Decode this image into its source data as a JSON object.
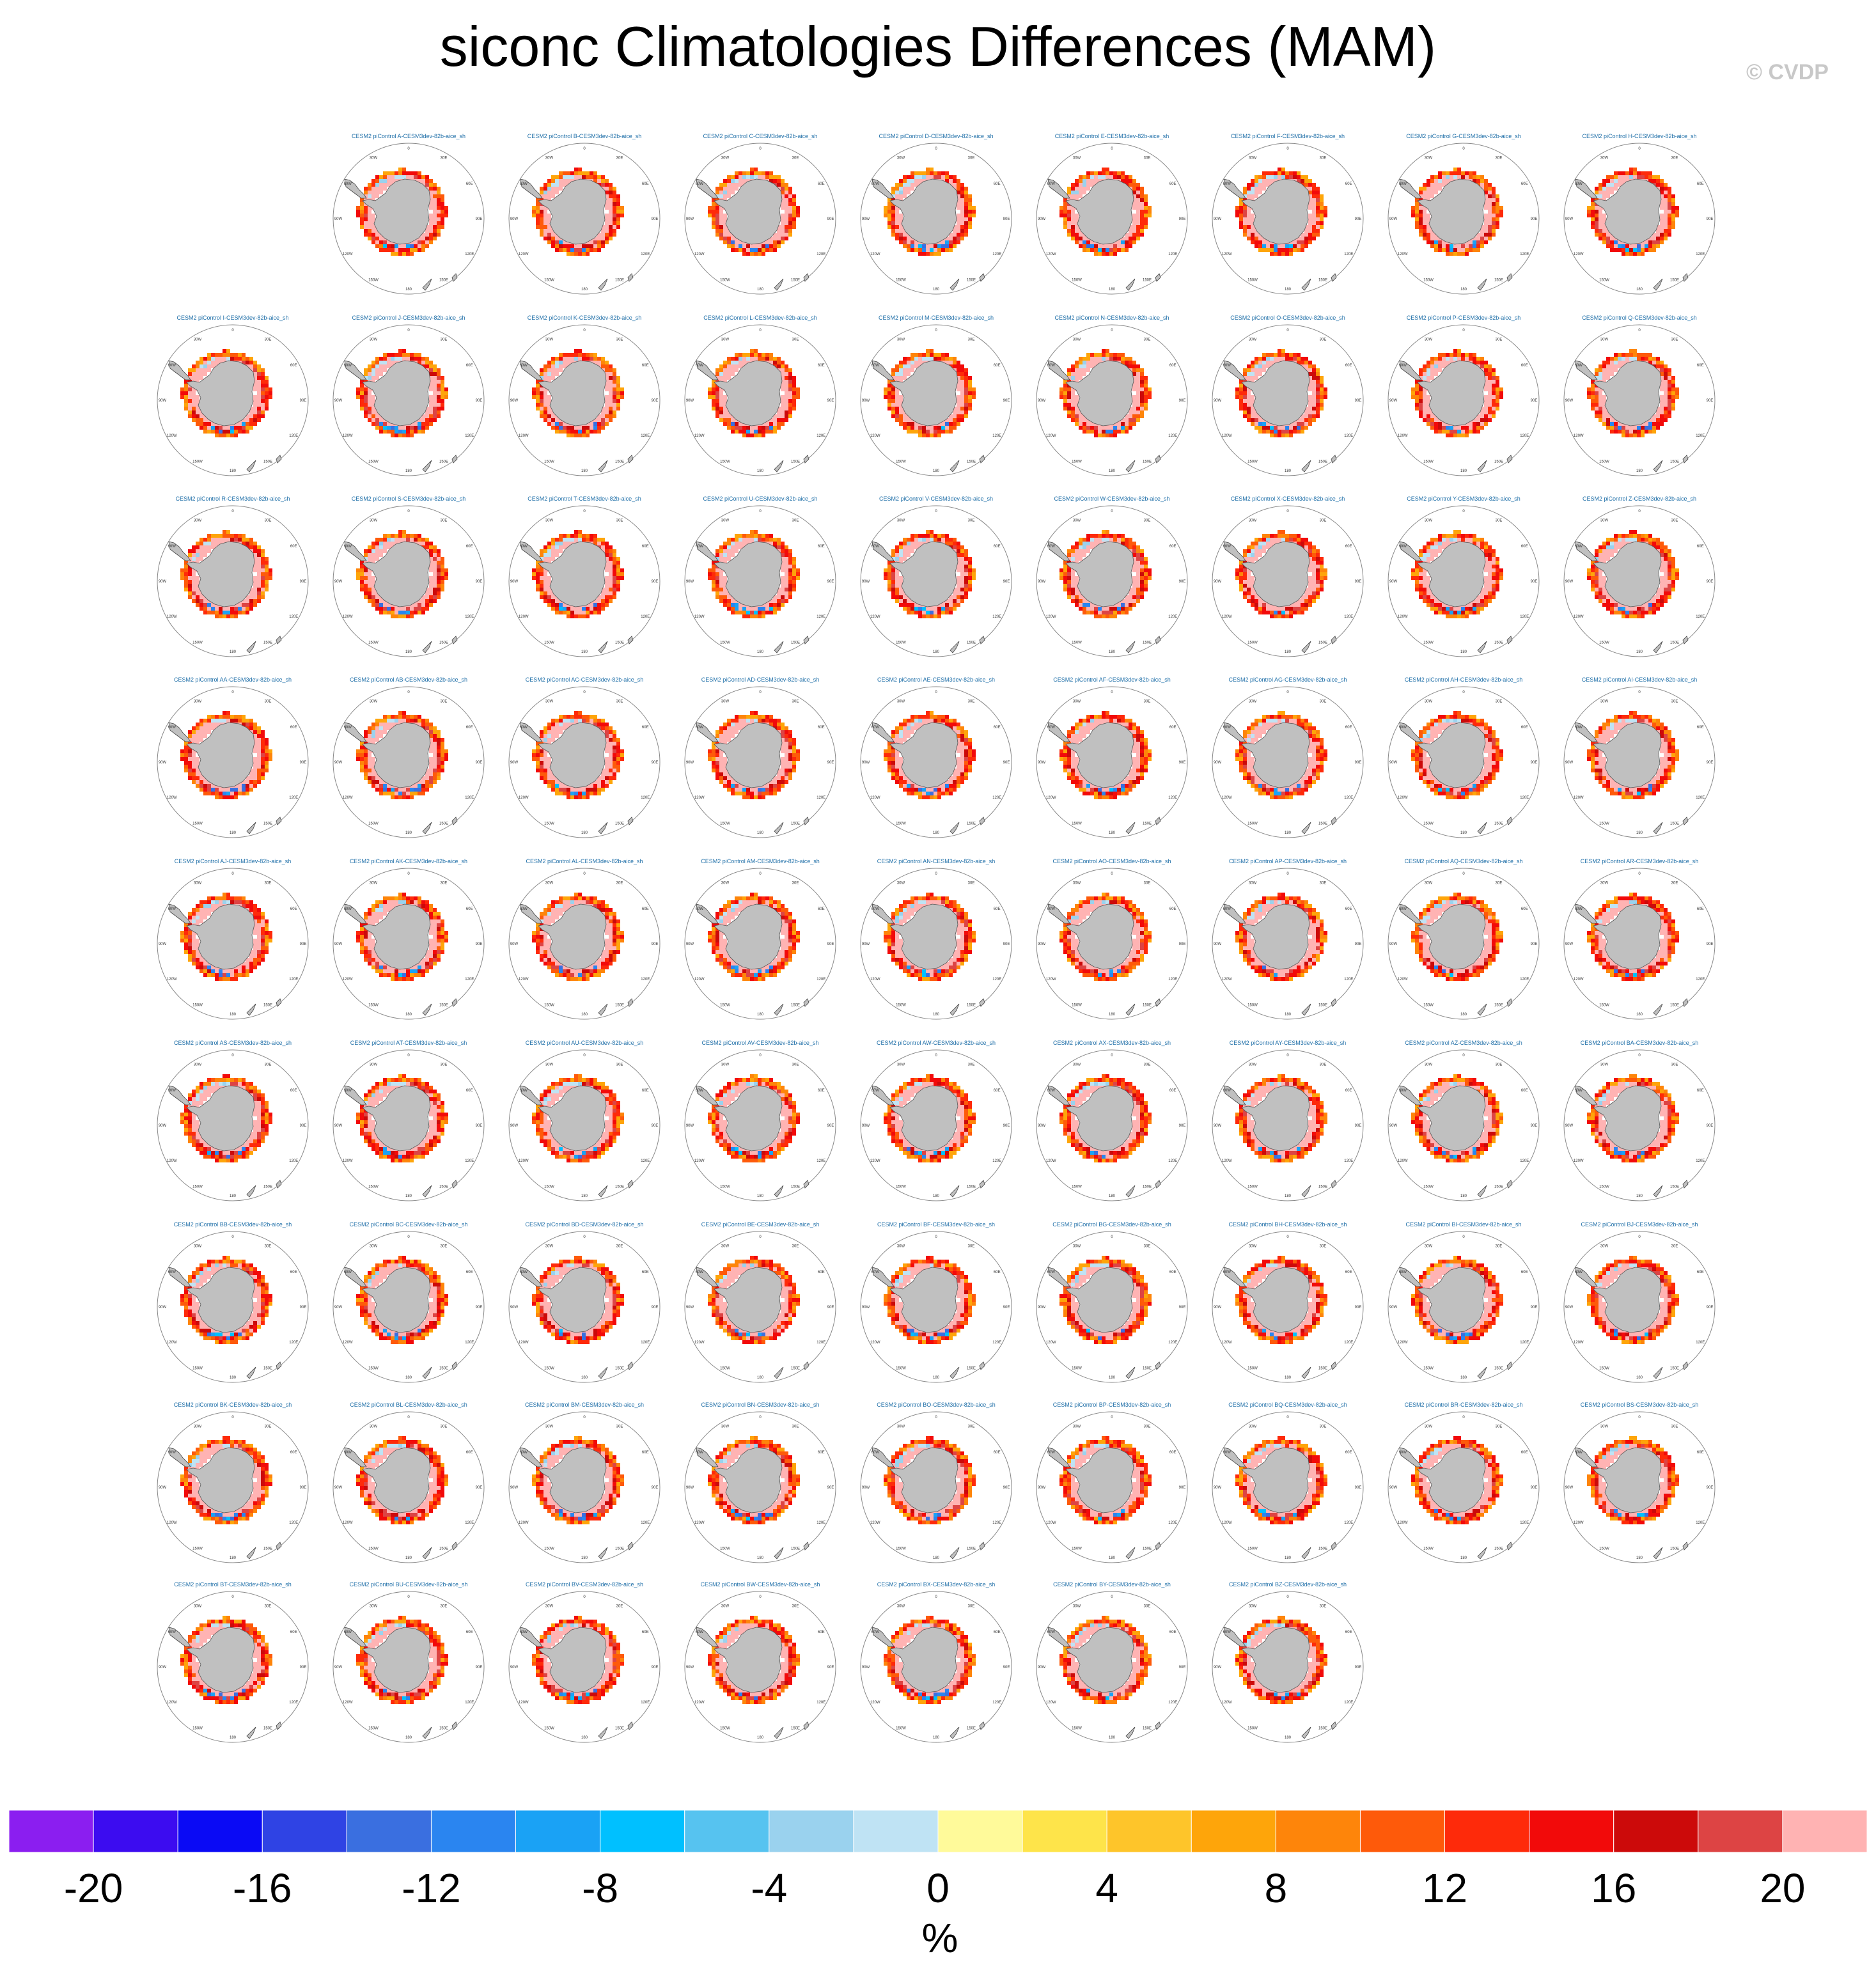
{
  "title": "siconc Climatologies Differences (MAM)",
  "watermark": "© CVDP",
  "chart_data": {
    "type": "heatmap",
    "title": "siconc Climatologies Differences (MAM)",
    "projection": "south polar stereographic",
    "variable": "siconc",
    "season": "MAM",
    "units": "%",
    "meridian_labels": [
      "0",
      "30E",
      "60E",
      "90E",
      "120E",
      "150E",
      "180",
      "150W",
      "120W",
      "90W",
      "60W",
      "30W"
    ],
    "panel_titles": [
      "CESM2 piControl A-CESM3dev-82b-aice_sh",
      "CESM2 piControl B-CESM3dev-82b-aice_sh",
      "CESM2 piControl C-CESM3dev-82b-aice_sh",
      "CESM2 piControl D-CESM3dev-82b-aice_sh",
      "CESM2 piControl E-CESM3dev-82b-aice_sh",
      "CESM2 piControl F-CESM3dev-82b-aice_sh",
      "CESM2 piControl G-CESM3dev-82b-aice_sh",
      "CESM2 piControl H-CESM3dev-82b-aice_sh",
      "CESM2 piControl I-CESM3dev-82b-aice_sh",
      "CESM2 piControl J-CESM3dev-82b-aice_sh",
      "CESM2 piControl K-CESM3dev-82b-aice_sh",
      "CESM2 piControl L-CESM3dev-82b-aice_sh",
      "CESM2 piControl M-CESM3dev-82b-aice_sh",
      "CESM2 piControl N-CESM3dev-82b-aice_sh",
      "CESM2 piControl O-CESM3dev-82b-aice_sh",
      "CESM2 piControl P-CESM3dev-82b-aice_sh",
      "CESM2 piControl Q-CESM3dev-82b-aice_sh",
      "CESM2 piControl R-CESM3dev-82b-aice_sh",
      "CESM2 piControl S-CESM3dev-82b-aice_sh",
      "CESM2 piControl T-CESM3dev-82b-aice_sh",
      "CESM2 piControl U-CESM3dev-82b-aice_sh",
      "CESM2 piControl V-CESM3dev-82b-aice_sh",
      "CESM2 piControl W-CESM3dev-82b-aice_sh",
      "CESM2 piControl X-CESM3dev-82b-aice_sh",
      "CESM2 piControl Y-CESM3dev-82b-aice_sh",
      "CESM2 piControl Z-CESM3dev-82b-aice_sh",
      "CESM2 piControl AA-CESM3dev-82b-aice_sh",
      "CESM2 piControl AB-CESM3dev-82b-aice_sh",
      "CESM2 piControl AC-CESM3dev-82b-aice_sh",
      "CESM2 piControl AD-CESM3dev-82b-aice_sh",
      "CESM2 piControl AE-CESM3dev-82b-aice_sh",
      "CESM2 piControl AF-CESM3dev-82b-aice_sh",
      "CESM2 piControl AG-CESM3dev-82b-aice_sh",
      "CESM2 piControl AH-CESM3dev-82b-aice_sh",
      "CESM2 piControl AI-CESM3dev-82b-aice_sh",
      "CESM2 piControl AJ-CESM3dev-82b-aice_sh",
      "CESM2 piControl AK-CESM3dev-82b-aice_sh",
      "CESM2 piControl AL-CESM3dev-82b-aice_sh",
      "CESM2 piControl AM-CESM3dev-82b-aice_sh",
      "CESM2 piControl AN-CESM3dev-82b-aice_sh",
      "CESM2 piControl AO-CESM3dev-82b-aice_sh",
      "CESM2 piControl AP-CESM3dev-82b-aice_sh",
      "CESM2 piControl AQ-CESM3dev-82b-aice_sh",
      "CESM2 piControl AR-CESM3dev-82b-aice_sh",
      "CESM2 piControl AS-CESM3dev-82b-aice_sh",
      "CESM2 piControl AT-CESM3dev-82b-aice_sh",
      "CESM2 piControl AU-CESM3dev-82b-aice_sh",
      "CESM2 piControl AV-CESM3dev-82b-aice_sh",
      "CESM2 piControl AW-CESM3dev-82b-aice_sh",
      "CESM2 piControl AX-CESM3dev-82b-aice_sh",
      "CESM2 piControl AY-CESM3dev-82b-aice_sh",
      "CESM2 piControl AZ-CESM3dev-82b-aice_sh",
      "CESM2 piControl BA-CESM3dev-82b-aice_sh",
      "CESM2 piControl BB-CESM3dev-82b-aice_sh",
      "CESM2 piControl BC-CESM3dev-82b-aice_sh",
      "CESM2 piControl BD-CESM3dev-82b-aice_sh",
      "CESM2 piControl BE-CESM3dev-82b-aice_sh",
      "CESM2 piControl BF-CESM3dev-82b-aice_sh",
      "CESM2 piControl BG-CESM3dev-82b-aice_sh",
      "CESM2 piControl BH-CESM3dev-82b-aice_sh",
      "CESM2 piControl BI-CESM3dev-82b-aice_sh",
      "CESM2 piControl BJ-CESM3dev-82b-aice_sh",
      "CESM2 piControl BK-CESM3dev-82b-aice_sh",
      "CESM2 piControl BL-CESM3dev-82b-aice_sh",
      "CESM2 piControl BM-CESM3dev-82b-aice_sh",
      "CESM2 piControl BN-CESM3dev-82b-aice_sh",
      "CESM2 piControl BO-CESM3dev-82b-aice_sh",
      "CESM2 piControl BP-CESM3dev-82b-aice_sh",
      "CESM2 piControl BQ-CESM3dev-82b-aice_sh",
      "CESM2 piControl BR-CESM3dev-82b-aice_sh",
      "CESM2 piControl BS-CESM3dev-82b-aice_sh",
      "CESM2 piControl BT-CESM3dev-82b-aice_sh",
      "CESM2 piControl BU-CESM3dev-82b-aice_sh",
      "CESM2 piControl BV-CESM3dev-82b-aice_sh",
      "CESM2 piControl BW-CESM3dev-82b-aice_sh",
      "CESM2 piControl BX-CESM3dev-82b-aice_sh",
      "CESM2 piControl BY-CESM3dev-82b-aice_sh",
      "CESM2 piControl BZ-CESM3dev-82b-aice_sh"
    ],
    "colorbar": {
      "label": "%",
      "levels": [
        -20,
        -18,
        -16,
        -14,
        -12,
        -10,
        -8,
        -6,
        -4,
        -2,
        0,
        2,
        4,
        6,
        8,
        10,
        12,
        14,
        16,
        18,
        20
      ],
      "tick_labels": [
        "-20",
        "-16",
        "-12",
        "-8",
        "-4",
        "0",
        "4",
        "8",
        "12",
        "16",
        "20"
      ],
      "colors": [
        "#8b1ef0",
        "#3c0cf0",
        "#0a0af5",
        "#2f43e4",
        "#3a6fe0",
        "#2a85f0",
        "#1aa2f5",
        "#00c0ff",
        "#56c3f0",
        "#9ad2ee",
        "#bfe3f4",
        "#fffa9a",
        "#fee44a",
        "#fec52a",
        "#fea50a",
        "#fe850a",
        "#fe5a0a",
        "#fe2a0a",
        "#f20a0a",
        "#cc0a0a",
        "#dd4444",
        "#ffb3b3"
      ]
    },
    "colors": {
      "land": "#c0c0c0",
      "panel_title": "#1f6fa8",
      "grid": "#888888"
    }
  }
}
